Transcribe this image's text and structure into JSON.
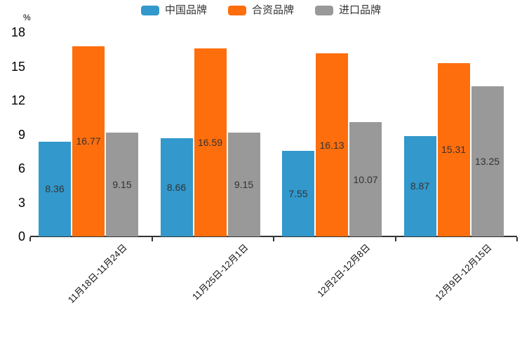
{
  "unit_label": "%",
  "chart_data": {
    "type": "bar",
    "title": "",
    "unit_label": "%",
    "categories": [
      "11月18日-11月24日",
      "11月25日-12月1日",
      "12月2日-12月8日",
      "12月9日-12月15日"
    ],
    "series": [
      {
        "name": "中国品牌",
        "color": "#3398CB",
        "values": [
          8.36,
          8.66,
          7.55,
          8.87
        ]
      },
      {
        "name": "合资品牌",
        "color": "#FF6E0C",
        "values": [
          16.77,
          16.59,
          16.13,
          15.31
        ]
      },
      {
        "name": "进口品牌",
        "color": "#999999",
        "values": [
          9.15,
          9.15,
          10.07,
          13.25
        ]
      }
    ],
    "yticks": [
      18,
      15,
      12,
      9,
      6,
      3,
      0
    ],
    "ylim": [
      0,
      18
    ],
    "grid": false,
    "legend_position": "top",
    "value_labels_inside_bars": true,
    "axis_color": "#333333",
    "value_label_color": "#333333",
    "background": "#ffffff"
  }
}
